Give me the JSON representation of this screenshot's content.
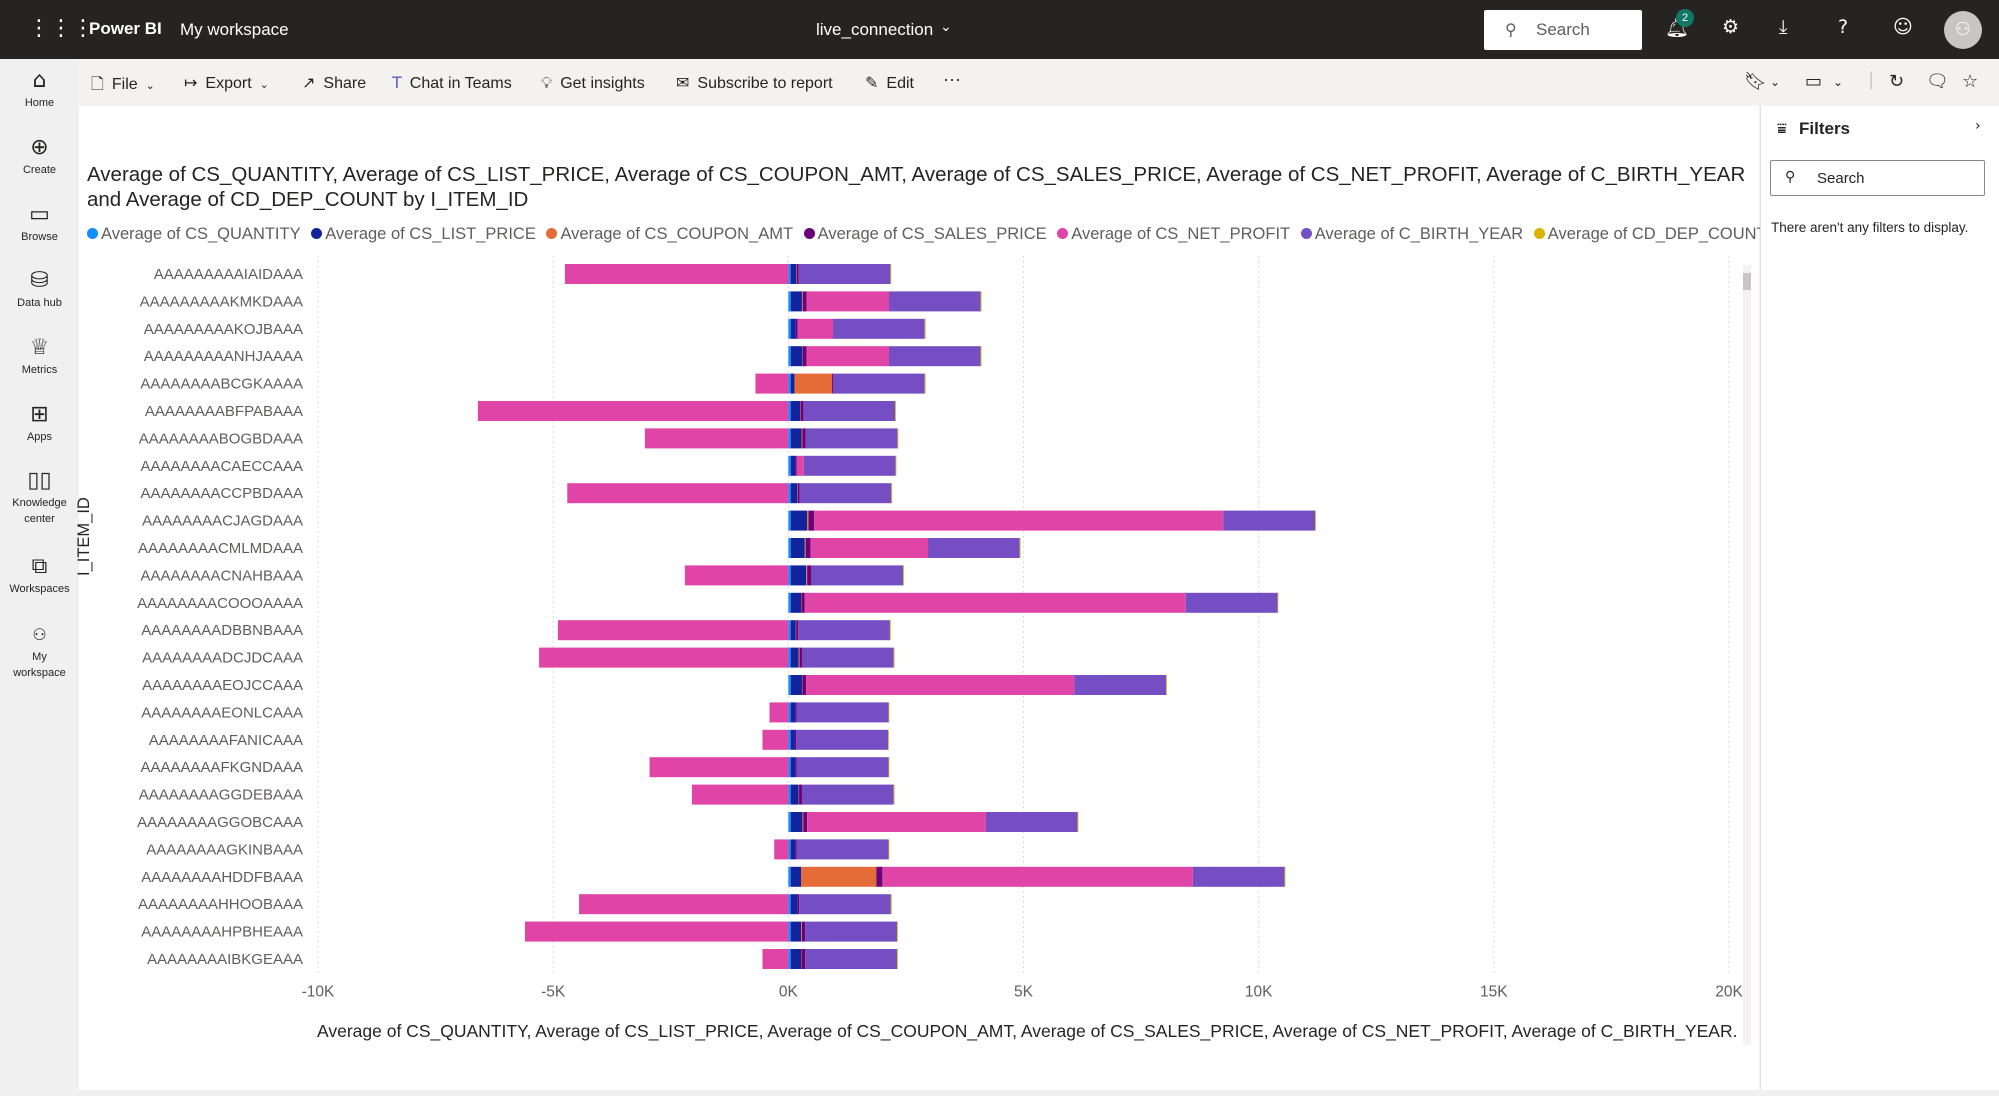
{
  "topbar": {
    "brand": "Power BI",
    "workspace": "My workspace",
    "report_name": "live_connection",
    "search_placeholder": "Search",
    "notification_count": "2"
  },
  "leftnav": [
    {
      "label": "Home",
      "icon": "home-icon"
    },
    {
      "label": "Create",
      "icon": "plus-circle-icon"
    },
    {
      "label": "Browse",
      "icon": "folder-icon"
    },
    {
      "label": "Data hub",
      "icon": "database-icon"
    },
    {
      "label": "Metrics",
      "icon": "trophy-icon"
    },
    {
      "label": "Apps",
      "icon": "apps-icon"
    },
    {
      "label": "Knowledge center",
      "icon": "book-icon"
    },
    {
      "label": "Workspaces",
      "icon": "workspaces-icon"
    },
    {
      "label": "My workspace",
      "icon": "user-icon"
    }
  ],
  "commandbar": {
    "file": "File",
    "export": "Export",
    "share": "Share",
    "chat": "Chat in Teams",
    "insights": "Get insights",
    "subscribe": "Subscribe to report",
    "edit": "Edit",
    "more": "···"
  },
  "filters": {
    "title": "Filters",
    "search_placeholder": "Search",
    "empty_message": "There aren't any filters to display."
  },
  "colors": {
    "CS_QUANTITY": "#118DFF",
    "CS_LIST_PRICE": "#12239E",
    "CS_COUPON_AMT": "#E66C37",
    "CS_SALES_PRICE": "#6B007B",
    "CS_NET_PROFIT": "#E044A7",
    "C_BIRTH_YEAR": "#744EC2",
    "CD_DEP_COUNT": "#D9B300"
  },
  "chart_data": {
    "type": "bar",
    "orientation": "horizontal",
    "stacked": true,
    "title": "Average of CS_QUANTITY, Average of CS_LIST_PRICE, Average of CS_COUPON_AMT, Average of CS_SALES_PRICE, Average of CS_NET_PROFIT, Average of C_BIRTH_YEAR and Average of CD_DEP_COUNT by I_ITEM_ID",
    "xlabel": "Average of CS_QUANTITY, Average of CS_LIST_PRICE, Average of CS_COUPON_AMT, Average of CS_SALES_PRICE, Average of CS_NET_PROFIT, Average of C_BIRTH_YEAR...",
    "ylabel": "I_ITEM_ID",
    "xlim": [
      -10000,
      20000
    ],
    "x_ticks": [
      -10000,
      -5000,
      0,
      5000,
      10000,
      15000,
      20000
    ],
    "x_tick_labels": [
      "-10K",
      "-5K",
      "0K",
      "5K",
      "10K",
      "15K",
      "20K"
    ],
    "grid": true,
    "legend_position": "top-left",
    "categories": [
      "AAAAAAAAAIAIDAAA",
      "AAAAAAAAAKMKDAAA",
      "AAAAAAAAAKOJBAAA",
      "AAAAAAAAANHJAAAA",
      "AAAAAAAABCGKAAAA",
      "AAAAAAAABFPABAAA",
      "AAAAAAAABOGBDAAA",
      "AAAAAAAACAECCAAA",
      "AAAAAAAACCPBDAAA",
      "AAAAAAAACJAGDAAA",
      "AAAAAAAACMLMDAAA",
      "AAAAAAAACNAHBAAA",
      "AAAAAAAACOOOAAAA",
      "AAAAAAAADBBNBAAA",
      "AAAAAAAADCJDCAAA",
      "AAAAAAAAEOJCCAAA",
      "AAAAAAAAEONLCAAA",
      "AAAAAAAAFANICAAA",
      "AAAAAAAAFKGNDAAA",
      "AAAAAAAAGGDEBAAA",
      "AAAAAAAAGGOBCAAA",
      "AAAAAAAAGKINBAAA",
      "AAAAAAAAHDDFBAAA",
      "AAAAAAAAHHOOBAAA",
      "AAAAAAAAHPBHEAAA",
      "AAAAAAAAIBKGEAAA"
    ],
    "series": [
      {
        "name": "Average of CS_QUANTITY",
        "values": [
          50,
          50,
          50,
          50,
          50,
          50,
          50,
          50,
          50,
          50,
          50,
          50,
          50,
          50,
          50,
          50,
          50,
          50,
          50,
          50,
          50,
          50,
          50,
          50,
          50,
          50
        ]
      },
      {
        "name": "Average of CS_LIST_PRICE",
        "values": [
          120,
          240,
          110,
          250,
          80,
          200,
          230,
          100,
          140,
          350,
          300,
          330,
          220,
          110,
          170,
          240,
          100,
          90,
          100,
          170,
          250,
          100,
          220,
          140,
          220,
          220
        ]
      },
      {
        "name": "Average of CS_COUPON_AMT",
        "values": [
          10,
          20,
          0,
          10,
          800,
          10,
          20,
          0,
          10,
          30,
          20,
          20,
          10,
          10,
          20,
          10,
          0,
          0,
          0,
          10,
          20,
          0,
          1600,
          0,
          20,
          10
        ]
      },
      {
        "name": "Average of CS_SALES_PRICE",
        "values": [
          40,
          80,
          40,
          80,
          20,
          60,
          70,
          30,
          40,
          120,
          100,
          90,
          70,
          40,
          50,
          80,
          30,
          30,
          30,
          60,
          80,
          30,
          130,
          40,
          70,
          80
        ]
      },
      {
        "name": "Average of CS_NET_PROFIT",
        "values": [
          -4750,
          1750,
          750,
          1750,
          -700,
          -6600,
          -3050,
          150,
          -4700,
          8700,
          2500,
          -2200,
          8100,
          -4900,
          -5300,
          5700,
          -400,
          -550,
          -2950,
          -2050,
          3800,
          -300,
          6600,
          -4450,
          -5600,
          -550
        ]
      },
      {
        "name": "Average of C_BIRTH_YEAR",
        "values": [
          1950,
          1950,
          1950,
          1950,
          1950,
          1950,
          1950,
          1950,
          1950,
          1950,
          1950,
          1950,
          1950,
          1950,
          1950,
          1950,
          1950,
          1950,
          1950,
          1950,
          1950,
          1950,
          1950,
          1950,
          1950,
          1950
        ]
      },
      {
        "name": "Average of CD_DEP_COUNT",
        "values": [
          2,
          2,
          2,
          2,
          2,
          2,
          2,
          2,
          2,
          2,
          2,
          2,
          2,
          2,
          2,
          2,
          2,
          2,
          2,
          2,
          2,
          2,
          2,
          2,
          2,
          2
        ]
      }
    ]
  }
}
